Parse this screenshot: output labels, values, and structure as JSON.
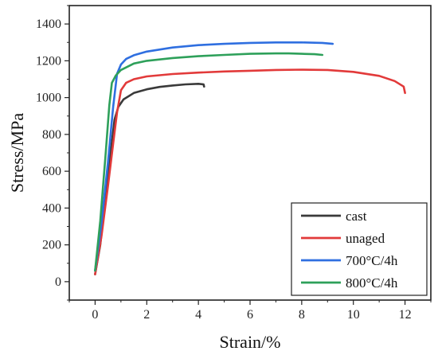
{
  "chart_data": {
    "type": "line",
    "xlabel": "Strain/%",
    "ylabel": "Stress/MPa",
    "xlim": [
      -1,
      13
    ],
    "ylim": [
      -100,
      1500
    ],
    "x_ticks": [
      0,
      2,
      4,
      6,
      8,
      10,
      12
    ],
    "y_ticks": [
      0,
      200,
      400,
      600,
      800,
      1000,
      1200,
      1400
    ],
    "grid": false,
    "legend_position": "bottom-right",
    "series": [
      {
        "name": "cast",
        "color": "#3a3a3a",
        "points": [
          [
            0,
            40
          ],
          [
            0.2,
            200
          ],
          [
            0.4,
            450
          ],
          [
            0.6,
            700
          ],
          [
            0.75,
            880
          ],
          [
            0.9,
            950
          ],
          [
            1.1,
            990
          ],
          [
            1.5,
            1025
          ],
          [
            2,
            1045
          ],
          [
            2.5,
            1058
          ],
          [
            3,
            1066
          ],
          [
            3.5,
            1072
          ],
          [
            4,
            1075
          ],
          [
            4.2,
            1072
          ],
          [
            4.22,
            1060
          ]
        ]
      },
      {
        "name": "unaged",
        "color": "#e23a3a",
        "points": [
          [
            0,
            40
          ],
          [
            0.25,
            250
          ],
          [
            0.5,
            520
          ],
          [
            0.7,
            750
          ],
          [
            0.85,
            920
          ],
          [
            1,
            1040
          ],
          [
            1.2,
            1080
          ],
          [
            1.5,
            1100
          ],
          [
            2,
            1115
          ],
          [
            3,
            1128
          ],
          [
            4,
            1136
          ],
          [
            5,
            1142
          ],
          [
            6,
            1146
          ],
          [
            7,
            1150
          ],
          [
            8,
            1152
          ],
          [
            9,
            1150
          ],
          [
            10,
            1140
          ],
          [
            11,
            1118
          ],
          [
            11.6,
            1090
          ],
          [
            11.95,
            1060
          ],
          [
            12,
            1025
          ]
        ]
      },
      {
        "name": "700°C/4h",
        "color": "#2f6fe0",
        "points": [
          [
            0,
            60
          ],
          [
            0.25,
            320
          ],
          [
            0.5,
            650
          ],
          [
            0.7,
            950
          ],
          [
            0.85,
            1130
          ],
          [
            1,
            1180
          ],
          [
            1.2,
            1210
          ],
          [
            1.5,
            1230
          ],
          [
            2,
            1250
          ],
          [
            3,
            1272
          ],
          [
            4,
            1285
          ],
          [
            5,
            1292
          ],
          [
            6,
            1297
          ],
          [
            7,
            1300
          ],
          [
            8,
            1300
          ],
          [
            8.8,
            1297
          ],
          [
            9.2,
            1292
          ]
        ]
      },
      {
        "name": "800°C/4h",
        "color": "#2ea05a",
        "points": [
          [
            0,
            60
          ],
          [
            0.2,
            330
          ],
          [
            0.4,
            680
          ],
          [
            0.55,
            960
          ],
          [
            0.65,
            1080
          ],
          [
            0.8,
            1120
          ],
          [
            1,
            1150
          ],
          [
            1.5,
            1185
          ],
          [
            2,
            1200
          ],
          [
            3,
            1215
          ],
          [
            4,
            1225
          ],
          [
            5,
            1232
          ],
          [
            6,
            1238
          ],
          [
            7,
            1240
          ],
          [
            7.5,
            1240
          ],
          [
            8,
            1238
          ],
          [
            8.5,
            1236
          ],
          [
            8.8,
            1232
          ]
        ]
      }
    ]
  }
}
